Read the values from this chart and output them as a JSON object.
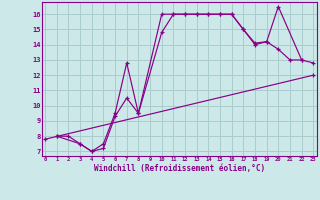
{
  "xlabel": "Windchill (Refroidissement éolien,°C)",
  "bg_color": "#cce8e8",
  "line_color": "#880088",
  "grid_color": "#aacccc",
  "xlim": [
    -0.3,
    23.3
  ],
  "ylim": [
    6.7,
    16.8
  ],
  "yticks": [
    7,
    8,
    9,
    10,
    11,
    12,
    13,
    14,
    15,
    16
  ],
  "xticks": [
    0,
    1,
    2,
    3,
    4,
    5,
    6,
    7,
    8,
    9,
    10,
    11,
    12,
    13,
    14,
    15,
    16,
    17,
    18,
    19,
    20,
    21,
    22,
    23
  ],
  "line1_x": [
    1,
    2,
    3,
    4,
    5,
    6,
    7,
    8,
    10,
    11,
    12,
    13,
    14,
    15,
    16,
    17,
    18,
    19,
    20,
    22
  ],
  "line1_y": [
    8,
    8,
    7.5,
    7.0,
    7.2,
    9.3,
    10.5,
    9.5,
    16.0,
    16.0,
    16.0,
    16.0,
    16.0,
    16.0,
    16.0,
    15.0,
    14.0,
    14.2,
    16.5,
    13.0
  ],
  "line2_x": [
    1,
    3,
    4,
    5,
    6,
    7,
    8,
    10,
    11,
    12,
    13,
    14,
    15,
    16,
    17,
    18,
    19,
    20,
    21,
    22,
    23
  ],
  "line2_y": [
    8.0,
    7.5,
    7.0,
    7.5,
    9.5,
    12.8,
    9.5,
    14.8,
    16.0,
    16.0,
    16.0,
    16.0,
    16.0,
    16.0,
    15.0,
    14.1,
    14.2,
    13.7,
    13.0,
    13.0,
    12.8
  ],
  "line3_x": [
    0,
    23
  ],
  "line3_y": [
    7.8,
    12.0
  ]
}
